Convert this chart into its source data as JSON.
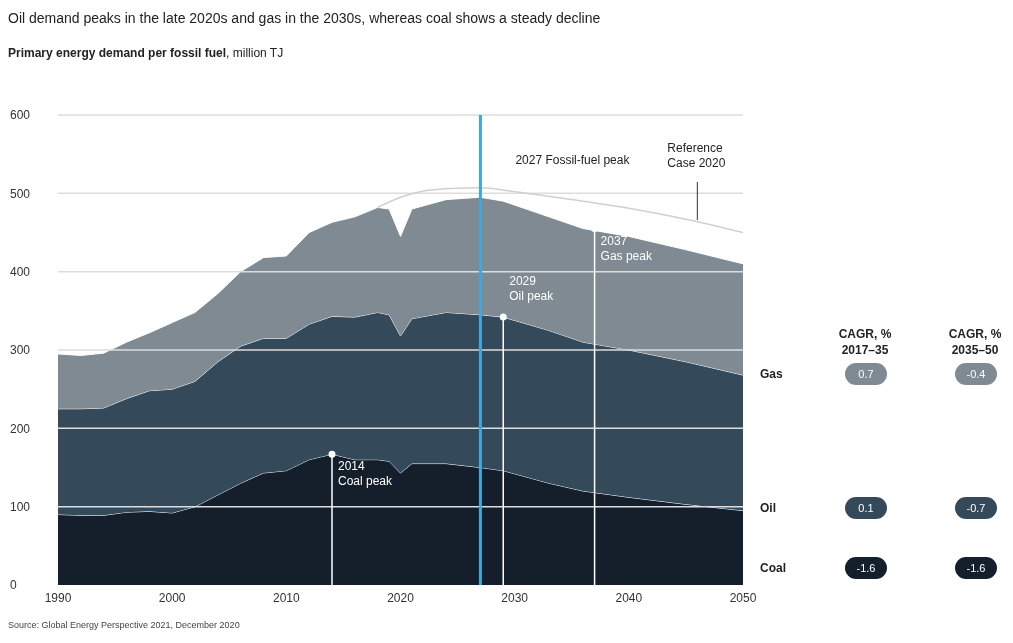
{
  "chart_data": [
    {
      "type": "area",
      "stacked": true,
      "title": "Oil demand peaks in the late 2020s and gas in the 2030s, whereas coal shows a steady decline",
      "subtitle": "Primary energy demand per fossil fuel, million TJ",
      "x": [
        1990,
        1992,
        1994,
        1996,
        1998,
        2000,
        2002,
        2004,
        2006,
        2008,
        2010,
        2012,
        2014,
        2016,
        2018,
        2019,
        2020,
        2021,
        2024,
        2027,
        2029,
        2033,
        2036,
        2040,
        2045,
        2050
      ],
      "series": [
        {
          "color": "#141f2b",
          "values": [
            90,
            89,
            89,
            93,
            94,
            92,
            100,
            115,
            130,
            143,
            146,
            160,
            167,
            160,
            160,
            158,
            143,
            155,
            155,
            150,
            146,
            130,
            120,
            112,
            103,
            95
          ]
        },
        {
          "color": "#34495a",
          "values": [
            135,
            136,
            137,
            145,
            154,
            158,
            160,
            170,
            175,
            172,
            169,
            173,
            176,
            182,
            188,
            187,
            175,
            185,
            193,
            195,
            196,
            195,
            190,
            188,
            182,
            173
          ]
        },
        {
          "color": "#7f8a93",
          "values": [
            70,
            68,
            70,
            72,
            74,
            85,
            88,
            87,
            95,
            103,
            105,
            117,
            120,
            128,
            134,
            135,
            127,
            140,
            144,
            150,
            148,
            145,
            145,
            145,
            143,
            142
          ]
        },
        {
          "type": "line",
          "color": "#d0d0d0",
          "x": [
            2018,
            2020,
            2022,
            2024,
            2027,
            2030,
            2035,
            2040,
            2045,
            2050
          ],
          "values": [
            482,
            495,
            503,
            506,
            507,
            502,
            492,
            481,
            467,
            450
          ]
        }
      ],
      "xlim": [
        1990,
        2050
      ],
      "xticks": [
        1990,
        2000,
        2010,
        2020,
        2030,
        2040,
        2050
      ],
      "ylim": [
        0,
        600
      ],
      "yticks": [
        0,
        100,
        200,
        300,
        400,
        500,
        600
      ],
      "grid": "y",
      "legend": false,
      "ref_lines": [
        {
          "axis": "x",
          "value": 2027,
          "label": "2027 Fossil-fuel peak",
          "color": "#3fa9dc"
        }
      ],
      "annotations": [
        {
          "text": "2014 Coal peak",
          "x": 2014,
          "y": 167
        },
        {
          "text": "2029 Oil peak",
          "x": 2029,
          "y": 342
        },
        {
          "text": "2037 Gas peak",
          "x": 2037,
          "y": 455
        },
        {
          "text": "Reference Case 2020",
          "x": 2046,
          "y": 466
        },
        "Source: Global Energy Perspective 2021, December 2020"
      ]
    },
    {
      "type": "other",
      "categories": [
        "Gas",
        "Oil",
        "Coal"
      ],
      "data_labels": true,
      "series": [
        {
          "name": "CAGR, % 2017–35",
          "colors": [
            "#7f8a93",
            "#34495a",
            "#141f2b"
          ],
          "values": [
            0.7,
            0.1,
            -1.6
          ]
        },
        {
          "name": "CAGR, % 2035–50",
          "colors": [
            "#7f8a93",
            "#34495a",
            "#141f2b"
          ],
          "values": [
            -0.4,
            -0.7,
            -1.6
          ]
        }
      ]
    }
  ]
}
